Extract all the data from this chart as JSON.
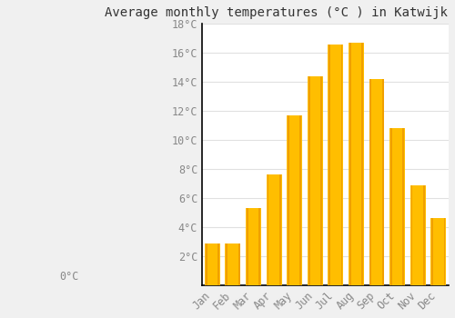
{
  "title": "Average monthly temperatures (°C ) in Katwijk aan den Rijn",
  "months": [
    "Jan",
    "Feb",
    "Mar",
    "Apr",
    "May",
    "Jun",
    "Jul",
    "Aug",
    "Sep",
    "Oct",
    "Nov",
    "Dec"
  ],
  "temperatures": [
    2.9,
    2.9,
    5.3,
    7.6,
    11.7,
    14.4,
    16.6,
    16.7,
    14.2,
    10.8,
    6.9,
    4.6
  ],
  "bar_color_main": "#FFBE00",
  "bar_color_edge": "#F0A000",
  "ylim": [
    0,
    18
  ],
  "yticks": [
    2,
    4,
    6,
    8,
    10,
    12,
    14,
    16,
    18
  ],
  "ytick_labels": [
    "2°C",
    "4°C",
    "6°C",
    "8°C",
    "10°C",
    "12°C",
    "14°C",
    "16°C",
    "18°C"
  ],
  "extra_ytick": 0,
  "extra_ytick_label": "0°C",
  "background_color": "#F0F0F0",
  "plot_bg_color": "#FFFFFF",
  "grid_color": "#E0E0E0",
  "title_fontsize": 10,
  "tick_fontsize": 8.5,
  "tick_color": "#888888",
  "font_family": "monospace",
  "bar_width": 0.75,
  "spine_color": "#000000"
}
